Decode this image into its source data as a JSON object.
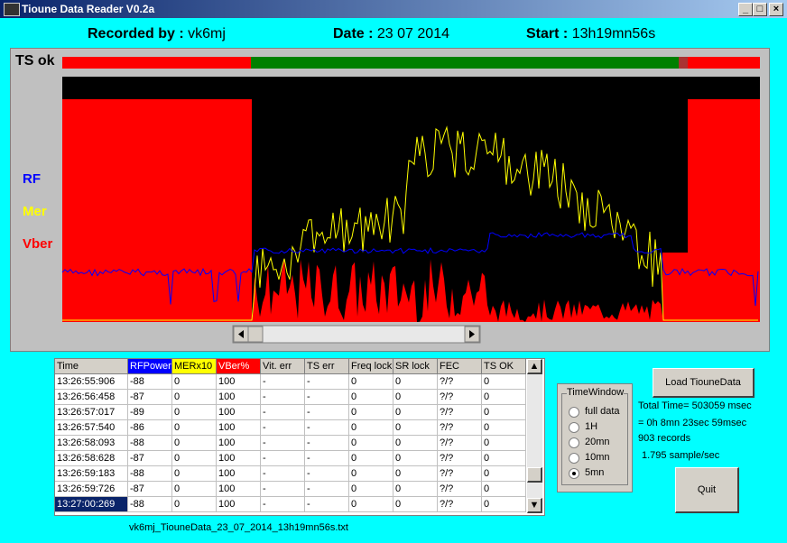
{
  "window": {
    "title": "Tioune Data Reader V0.2a"
  },
  "header": {
    "recorded_by_label": "Recorded by :",
    "recorded_by": "vk6mj",
    "date_label": "Date :",
    "date": "23 07 2014",
    "start_label": "Start :",
    "start": "13h19mn56s"
  },
  "plot": {
    "ts_label": "TS ok",
    "legend": [
      "RF",
      "Mer",
      "Vber"
    ]
  },
  "table": {
    "columns": [
      "Time",
      "RFPower",
      "MERx10",
      "VBer%",
      "Vit. err",
      "TS err",
      "Freq lock",
      "SR lock",
      "FEC",
      "TS OK"
    ],
    "rows": [
      [
        "13:26:55:906",
        "-88",
        "0",
        "100",
        "-",
        "-",
        "0",
        "0",
        "?/?",
        "0"
      ],
      [
        "13:26:56:458",
        "-87",
        "0",
        "100",
        "-",
        "-",
        "0",
        "0",
        "?/?",
        "0"
      ],
      [
        "13:26:57:017",
        "-89",
        "0",
        "100",
        "-",
        "-",
        "0",
        "0",
        "?/?",
        "0"
      ],
      [
        "13:26:57:540",
        "-86",
        "0",
        "100",
        "-",
        "-",
        "0",
        "0",
        "?/?",
        "0"
      ],
      [
        "13:26:58:093",
        "-88",
        "0",
        "100",
        "-",
        "-",
        "0",
        "0",
        "?/?",
        "0"
      ],
      [
        "13:26:58:628",
        "-87",
        "0",
        "100",
        "-",
        "-",
        "0",
        "0",
        "?/?",
        "0"
      ],
      [
        "13:26:59:183",
        "-88",
        "0",
        "100",
        "-",
        "-",
        "0",
        "0",
        "?/?",
        "0"
      ],
      [
        "13:26:59:726",
        "-87",
        "0",
        "100",
        "-",
        "-",
        "0",
        "0",
        "?/?",
        "0"
      ],
      [
        "13:27:00:269",
        "-88",
        "0",
        "100",
        "-",
        "-",
        "0",
        "0",
        "?/?",
        "0"
      ]
    ],
    "selected_row": 8
  },
  "time_window": {
    "title": "TimeWindow",
    "options": [
      "full data",
      "1H",
      "20mn",
      "10mn",
      "5mn"
    ],
    "selected": 4
  },
  "stats": {
    "total_time": "Total Time= 503059 msec",
    "duration": "= 0h 8mn 23sec 59msec",
    "records": "903 records",
    "rate": "1.795 sample/sec"
  },
  "buttons": {
    "load": "Load TiouneData",
    "quit": "Quit"
  },
  "filename": "vk6mj_TiouneData_23_07_2014_13h19mn56s.txt"
}
